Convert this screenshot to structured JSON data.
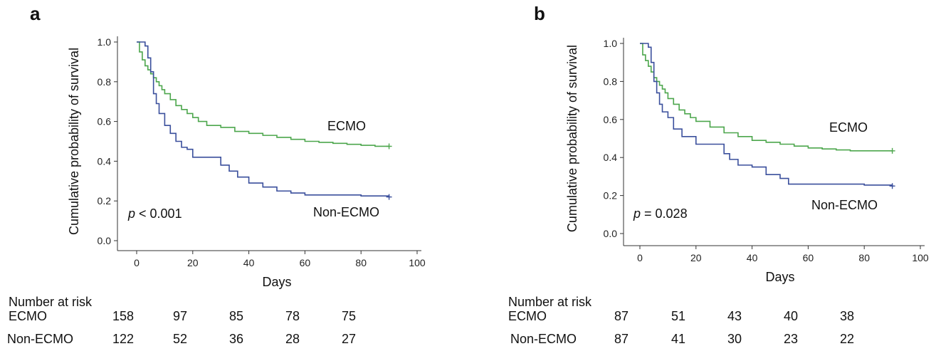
{
  "chart_data": [
    {
      "panel": "a",
      "type": "line",
      "step": true,
      "title": "",
      "xlabel": "Days",
      "ylabel": "Cumulative probability of survival",
      "xlim": [
        0,
        100
      ],
      "ylim": [
        0,
        1
      ],
      "xticks": [
        0,
        20,
        40,
        60,
        80,
        100
      ],
      "yticks": [
        "0.0",
        "0.2",
        "0.4",
        "0.6",
        "0.8",
        "1.0"
      ],
      "annotation_p": "p",
      "annotation_value": " < 0.001",
      "series": [
        {
          "name": "ECMO",
          "color": "#4ca64c",
          "x": [
            0,
            1,
            2,
            3,
            4,
            5,
            6,
            7,
            8,
            9,
            10,
            12,
            14,
            16,
            18,
            20,
            22,
            25,
            30,
            35,
            40,
            45,
            50,
            55,
            60,
            65,
            70,
            75,
            80,
            85,
            90
          ],
          "y": [
            1.0,
            0.95,
            0.91,
            0.88,
            0.86,
            0.84,
            0.82,
            0.8,
            0.78,
            0.76,
            0.74,
            0.71,
            0.68,
            0.66,
            0.64,
            0.62,
            0.6,
            0.58,
            0.57,
            0.55,
            0.54,
            0.53,
            0.52,
            0.51,
            0.5,
            0.495,
            0.49,
            0.485,
            0.48,
            0.475,
            0.475
          ]
        },
        {
          "name": "Non-ECMO",
          "color": "#3a4f9c",
          "x": [
            0,
            3,
            4,
            5,
            6,
            7,
            8,
            10,
            12,
            14,
            16,
            18,
            20,
            24,
            28,
            30,
            33,
            36,
            40,
            45,
            50,
            55,
            60,
            70,
            80,
            90
          ],
          "y": [
            1.0,
            0.98,
            0.92,
            0.85,
            0.74,
            0.69,
            0.64,
            0.58,
            0.54,
            0.5,
            0.47,
            0.46,
            0.42,
            0.42,
            0.42,
            0.38,
            0.35,
            0.32,
            0.29,
            0.27,
            0.25,
            0.24,
            0.23,
            0.23,
            0.225,
            0.22
          ]
        }
      ],
      "risk_table": {
        "title": "Number at risk",
        "rows": [
          {
            "label": "ECMO",
            "values": [
              "158",
              "97",
              "85",
              "78",
              "75"
            ]
          },
          {
            "label": "Non-ECMO",
            "values": [
              "122",
              "52",
              "36",
              "28",
              "27"
            ]
          }
        ]
      }
    },
    {
      "panel": "b",
      "type": "line",
      "step": true,
      "title": "",
      "xlabel": "Days",
      "ylabel": "Cumulative probability of survival",
      "xlim": [
        0,
        100
      ],
      "ylim": [
        0,
        1
      ],
      "xticks": [
        0,
        20,
        40,
        60,
        80,
        100
      ],
      "yticks": [
        "0.0",
        "0.2",
        "0.4",
        "0.6",
        "0.8",
        "1.0"
      ],
      "annotation_p": "p",
      "annotation_value": " = 0.028",
      "series": [
        {
          "name": "ECMO",
          "color": "#4ca64c",
          "x": [
            0,
            1,
            2,
            3,
            4,
            5,
            6,
            7,
            8,
            9,
            10,
            12,
            14,
            16,
            18,
            20,
            25,
            30,
            35,
            40,
            45,
            50,
            55,
            60,
            65,
            70,
            75,
            80,
            90
          ],
          "y": [
            1.0,
            0.94,
            0.91,
            0.88,
            0.85,
            0.82,
            0.8,
            0.78,
            0.76,
            0.74,
            0.71,
            0.68,
            0.65,
            0.63,
            0.61,
            0.59,
            0.56,
            0.53,
            0.51,
            0.49,
            0.48,
            0.47,
            0.46,
            0.45,
            0.445,
            0.44,
            0.435,
            0.435,
            0.435
          ]
        },
        {
          "name": "Non-ECMO",
          "color": "#3a4f9c",
          "x": [
            0,
            3,
            4,
            5,
            6,
            7,
            8,
            10,
            12,
            15,
            20,
            25,
            30,
            32,
            35,
            40,
            45,
            50,
            53,
            60,
            70,
            80,
            90
          ],
          "y": [
            1.0,
            0.98,
            0.9,
            0.8,
            0.74,
            0.68,
            0.64,
            0.61,
            0.55,
            0.51,
            0.47,
            0.47,
            0.42,
            0.39,
            0.36,
            0.35,
            0.31,
            0.29,
            0.26,
            0.26,
            0.26,
            0.255,
            0.25
          ]
        }
      ],
      "risk_table": {
        "title": "Number at risk",
        "rows": [
          {
            "label": "ECMO",
            "values": [
              "87",
              "51",
              "43",
              "40",
              "38"
            ]
          },
          {
            "label": "Non-ECMO",
            "values": [
              "87",
              "41",
              "30",
              "23",
              "22"
            ]
          }
        ]
      }
    }
  ]
}
